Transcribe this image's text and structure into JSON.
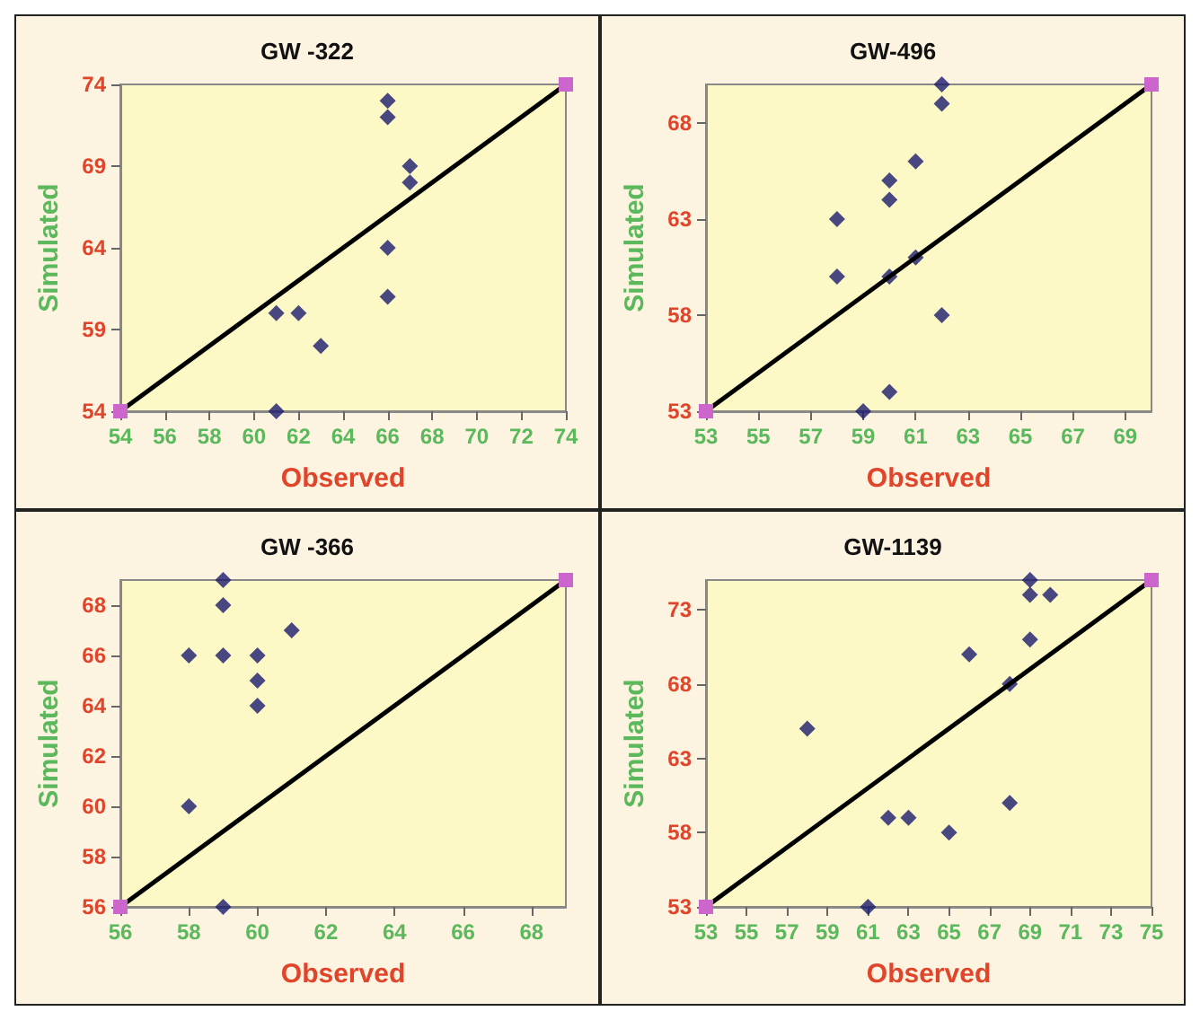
{
  "chart_data": [
    {
      "type": "scatter",
      "title": "GW -322",
      "xlabel": "Observed",
      "ylabel": "Simulated",
      "xlim": [
        54,
        74
      ],
      "ylim": [
        54,
        74
      ],
      "xticks": [
        54,
        56,
        58,
        60,
        62,
        64,
        66,
        68,
        70,
        72,
        74
      ],
      "yticks": [
        54,
        59,
        64,
        69,
        74
      ],
      "grid": false,
      "series": [
        {
          "marker": "diamond",
          "color": "#1a1a6e",
          "x": [
            66,
            66,
            67,
            67,
            66,
            66,
            61,
            62,
            63,
            61
          ],
          "values": [
            73,
            72,
            69,
            68,
            64,
            61,
            60,
            60,
            58,
            54
          ]
        },
        {
          "type": "line",
          "marker": "square",
          "color": "#000000",
          "colors": [
            "#cc66cc",
            "#cc66cc"
          ],
          "x": [
            54,
            74
          ],
          "values": [
            54,
            74
          ]
        }
      ]
    },
    {
      "type": "scatter",
      "title": "GW-496",
      "xlabel": "Observed",
      "ylabel": "Simulated",
      "xlim": [
        53,
        70
      ],
      "ylim": [
        53,
        70
      ],
      "xticks": [
        53,
        55,
        57,
        59,
        61,
        63,
        65,
        67,
        69
      ],
      "yticks": [
        53,
        58,
        63,
        68
      ],
      "grid": false,
      "series": [
        {
          "marker": "diamond",
          "color": "#1a1a6e",
          "x": [
            62,
            62,
            61,
            60,
            60,
            58,
            58,
            60,
            61,
            62,
            60,
            59
          ],
          "values": [
            70,
            69,
            66,
            65,
            64,
            63,
            60,
            60,
            61,
            58,
            54,
            53
          ]
        },
        {
          "type": "line",
          "marker": "square",
          "color": "#000000",
          "colors": [
            "#cc66cc",
            "#cc66cc"
          ],
          "x": [
            53,
            70
          ],
          "values": [
            53,
            70
          ]
        }
      ]
    },
    {
      "type": "scatter",
      "title": "GW -366",
      "xlabel": "Observed",
      "ylabel": "Simulated",
      "xlim": [
        56,
        69
      ],
      "ylim": [
        56,
        69
      ],
      "xticks": [
        56,
        58,
        60,
        62,
        64,
        66,
        68
      ],
      "yticks": [
        56,
        58,
        60,
        62,
        64,
        66,
        68
      ],
      "grid": false,
      "series": [
        {
          "marker": "diamond",
          "color": "#1a1a6e",
          "x": [
            59,
            59,
            58,
            59,
            60,
            61,
            60,
            60,
            58,
            59
          ],
          "values": [
            69,
            68,
            66,
            66,
            66,
            67,
            65,
            64,
            60,
            56
          ]
        },
        {
          "type": "line",
          "marker": "square",
          "color": "#000000",
          "colors": [
            "#cc66cc",
            "#cc66cc"
          ],
          "x": [
            56,
            69
          ],
          "values": [
            56,
            69
          ]
        }
      ]
    },
    {
      "type": "scatter",
      "title": "GW-1139",
      "xlabel": "Observed",
      "ylabel": "Simulated",
      "xlim": [
        53,
        75
      ],
      "ylim": [
        53,
        75
      ],
      "xticks": [
        53,
        55,
        57,
        59,
        61,
        63,
        65,
        67,
        69,
        71,
        73,
        75
      ],
      "yticks": [
        53,
        58,
        63,
        68,
        73
      ],
      "grid": false,
      "series": [
        {
          "marker": "diamond",
          "color": "#1a1a6e",
          "x": [
            69,
            69,
            70,
            69,
            66,
            68,
            58,
            62,
            63,
            65,
            68,
            61
          ],
          "values": [
            75,
            74,
            74,
            71,
            70,
            68,
            65,
            59,
            59,
            58,
            60,
            53
          ]
        },
        {
          "type": "line",
          "marker": "square",
          "color": "#000000",
          "colors": [
            "#cc66cc",
            "#cc66cc"
          ],
          "x": [
            53,
            75
          ],
          "values": [
            53,
            75
          ]
        }
      ]
    }
  ]
}
